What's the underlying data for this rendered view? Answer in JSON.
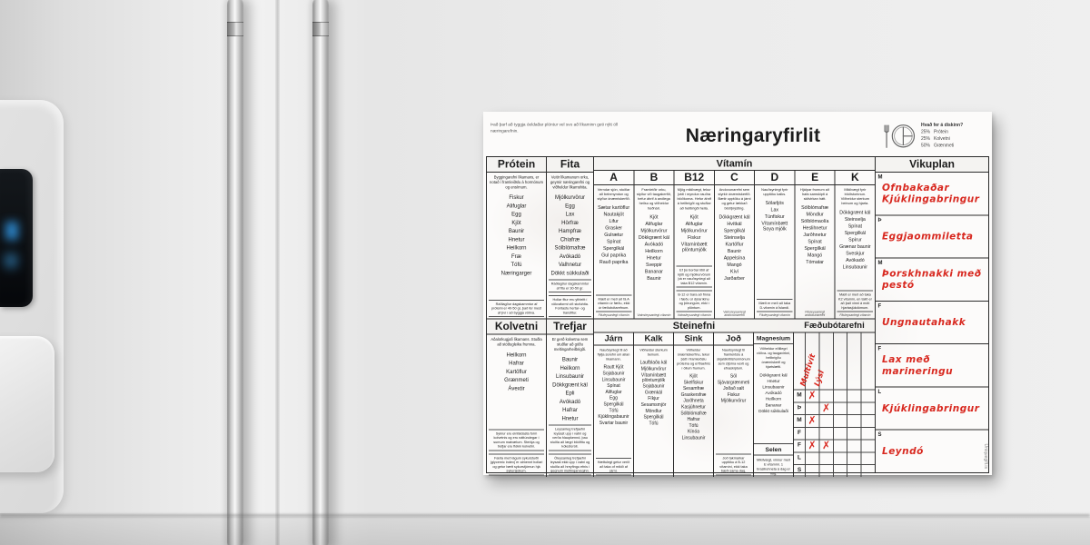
{
  "chart": {
    "top_note": "Það þarf að tyggja óeldaðar plöntur vel svo að líkaminn geti nýtt öll næringarefnin.",
    "title": "Næringaryfirlit",
    "plate": {
      "question": "Hvað fer á diskinn?",
      "portions": [
        {
          "pct": "25%",
          "label": "Prótein"
        },
        {
          "pct": "25%",
          "label": "Kolvetni"
        },
        {
          "pct": "50%",
          "label": "Grænmeti"
        }
      ]
    },
    "protein": {
      "header": "Prótein",
      "desc": "Byggingarefni líkamans, er notað í framleiðslu á hormónum og ensímum.",
      "items": [
        "Fiskur",
        "Alifuglar",
        "Egg",
        "Kjöt",
        "Baunir",
        "Hnetur",
        "Heilkorn",
        "Fræ",
        "Tófú",
        "Næringarger"
      ],
      "foot": "Ráðlagður dagskammtur af próteini er 40-50 gr, það fer mest af því í að byggja vöðva."
    },
    "fita": {
      "header": "Fita",
      "desc": "Veitir líkamanum orku, geymir næringarefni og viðheldur líkamshita.",
      "items": [
        "Mjólkurvörur",
        "Egg",
        "Lax",
        "Hörfræ",
        "Hampfræ",
        "Chiafræ",
        "Sólblómafræ",
        "Avókadó",
        "Valhnetur",
        "Dökkt súkkulaði"
      ],
      "foot": "Ráðlagður dagskammtur af fitu er 30-50 gr.",
      "foot2": "Hollar fitur eru yfirleitt í vökvaformi við stofuhita. Forðastu hertar- og transfitur."
    },
    "vitamin_section": "Vítamín",
    "vitamins": [
      {
        "header": "A",
        "desc": "Verndar sjón, stuðlar að beinmyndun og styður ónæmiskerfið.",
        "items": [
          "Sætar kartöflur",
          "Nautakjöt",
          "Lifur",
          "Grasker",
          "Gulrætur",
          "Spínat",
          "Spergilkál",
          "Gul paprika",
          "Rauð paprika"
        ],
        "note": "Mælt er með að fá A vítamín úr fæðu, ekki úr fæðubótarefnum.",
        "foot": "Fituleysanlegt vítamín"
      },
      {
        "header": "B",
        "desc": "Framleiðir orku, styður við taugakerfið, hefur áhrif á andlega heilsu og viðheldur húðhári.",
        "items": [
          "Kjöt",
          "Alifuglar",
          "Mjólkurvörur",
          "Dökkgrænt kál",
          "Avókadó",
          "Heilkorn",
          "Hnetur",
          "Sveppir",
          "Bananar",
          "Baunir"
        ],
        "foot": "Vatnsleysanlegt vítamín"
      },
      {
        "header": "B12",
        "desc": "Mjög mikilvægt, tekur þátt í myndun rauðra blóðkorna. Hefur áhrif á heilbrigði og stuðlar að heilbrigði heila.",
        "items": [
          "Kjöt",
          "Alifuglar",
          "Mjólkurvörur",
          "Fiskur",
          "Vítamínbætt plöntumjólk"
        ],
        "note": "Ef þú borðar lítið af kjöti og mjólkurvörum þá er nauðsynlegt að taka B12 vítamín.",
        "note2": "B-12 er bara að finna í fæðu úr dýraríkinu og þörungum, ekki í plöntum.",
        "foot": "Vatnsleysanlegt vítamín"
      },
      {
        "header": "C",
        "desc": "Andoxunarefni sem styrkir ónæmiskerfið. Bætir upptöku á járni og getur lækkað blóðþrýsting.",
        "items": [
          "Dökkgrænt kál",
          "Hvítkál",
          "Spergilkál",
          "Steinselja",
          "Kartöflur",
          "Baunir",
          "Appelsína",
          "Mangó",
          "Kíví",
          "Jarðarber"
        ],
        "foot": "Vatnsleysanlegt andoxunarefni"
      },
      {
        "header": "D",
        "desc": "Nauðsynlegt fyrir upptöku kalks.",
        "items": [
          "Sólarljós",
          "Lax",
          "Túnfiskur",
          "Vítamínbætt Soya mjólk"
        ],
        "note": "Mælt er með að taka D-vítamín á Íslandi.",
        "foot": "Fituleysanlegt vítamín"
      },
      {
        "header": "E",
        "desc": "Hjálpar frumum að hafa samskipti á skilvirkan hátt.",
        "items": [
          "Sólblómafræ",
          "Möndlur",
          "Sólblómaolía",
          "Heslihnetur",
          "Jarðhnetur",
          "Spínat",
          "Spergilkál",
          "Mangó",
          "Tómatar"
        ],
        "foot": "Fituleysanlegt andoxunarefni"
      },
      {
        "header": "K",
        "desc": "Mikilvægt fyrir blóðstorknun. Viðheldur sterkum beinum og hjarta.",
        "items": [
          "Dökkgrænt kál",
          "Steinselja",
          "Spínat",
          "Spergilkál",
          "Spírur",
          "Grænar baunir",
          "Sveskjur",
          "Avókadó",
          "Linsubaunir"
        ],
        "note": "Mælt er með að taka K2 vítamín, en talið er að það vinni á móti hjartasjúkdómum.",
        "foot": "Fituleysanlegt vítamín"
      }
    ],
    "kolvetni": {
      "header": "Kolvetni",
      "desc": "Aðalorkugjafi líkamans. Stuðla að stöðugleika frumna.",
      "items": [
        "Heilkorn",
        "Hafrar",
        "Kartöflur",
        "Grænmeti",
        "Ávextir"
      ],
      "foot": "Sykrur eru einfaldasta form kolvetnis og eru náttúrulegar í sumum matvælum. Sterkja og trefjar eru flókin kolvetni.",
      "foot2": "Fæða með lágum sykurstuðli (glycemic index) er almennt hollari og getur bætt sykurstjórnun hjá sykursjúkum."
    },
    "trefjar": {
      "header": "Trefjar",
      "desc": "Er gerð kolvetna sem stuðlar að góðu meltingarheilbrigði.",
      "items": [
        "Baunir",
        "Heilkorn",
        "Linsubaunir",
        "Dökkgrænt kál",
        "Epli",
        "Avókadó",
        "Hafrar",
        "Hnetur"
      ],
      "foot": "Leysanleg trefjaefni leysast upp í vatni og verða hlaupkennd, þau stuðla að lægri blóðfitu og kólesteróli.",
      "foot2": "Óleysanleg trefjaefni leysast ekki upp í vatni og stuðla að hreyfingu efnis í gegnum meltingarveginn."
    },
    "steinefni_section": "Steinefni",
    "steinefni": [
      {
        "header": "Járn",
        "desc": "Nauðsynlegt til að flytja súrefni um allan líkamann.",
        "items": [
          "Rautt Kjöt",
          "Sojabaunir",
          "Linsubaunir",
          "Spínat",
          "Alifuglar",
          "Egg",
          "Spergilkál",
          "Tófú",
          "Kjúklingabaunir",
          "Svartar baunir"
        ],
        "foot": "Hættulegt getur verið að taka of mikið af járni."
      },
      {
        "header": "Kalk",
        "desc": "Viðheldur sterkum beinum.",
        "items": [
          "Laufblaða kál",
          "Mjólkurvörur",
          "Vítamínbætt plöntumjólk",
          "Sojabaunir",
          "Grænkál",
          "Fíkjur",
          "Sesamsmjör",
          "Möndlur",
          "Spergilkál",
          "Tófú"
        ]
      },
      {
        "header": "Sink",
        "desc": "Viðheldur ónæmiskerfinu, tekur þátt í framleiðslu próteina og erfðaefnis í öllum frumum.",
        "items": [
          "Kjöt",
          "Skelfiskur",
          "Sesamfræ",
          "Graskersfræ",
          "Jarðhneta",
          "Kasjúhnetur",
          "Sólblómafræ",
          "Hafrar",
          "Tófú",
          "Kínóa",
          "Linsubaunir"
        ]
      },
      {
        "header": "Joð",
        "desc": "Nauðsynlegt til framleiðslu á skjaldkirtilshormónum sem stjórna vexti og efnaskiptum.",
        "items": [
          "Söl",
          "Sjávargrænmeti",
          "Joðað salt",
          "Fiskur",
          "Mjólkurvörur"
        ],
        "foot": "Joð takmarkar upptöku á B-12 vítamíni, ekki taka bæði sama dag."
      }
    ],
    "magnesium": {
      "header": "Magnesíum",
      "desc": "Viðheldur eðlilegri vöðva- og taugavirkni, heilbrigðu ónæmiskerfi og hjartslætti.",
      "items": [
        "Dökkgrænt kál",
        "Hnetur",
        "Linsubaunir",
        "Avókadó",
        "Heilkorn",
        "Bananar",
        "Dökkt súkkulaði"
      ]
    },
    "selen": {
      "header": "Selen",
      "desc": "Mikilvægt, vinnur með E vítamíni. 1 brasilíuhneta á dag er nóg."
    },
    "supplements": {
      "header": "Fæðubótarefni",
      "columns": [
        "Multivít",
        "Lýsi",
        "",
        "",
        ""
      ],
      "rows": [
        {
          "day": "M",
          "checks": [
            true,
            false,
            false,
            false,
            false
          ]
        },
        {
          "day": "Þ",
          "checks": [
            false,
            true,
            false,
            false,
            false
          ]
        },
        {
          "day": "M",
          "checks": [
            true,
            false,
            false,
            false,
            false
          ]
        },
        {
          "day": "F",
          "checks": [
            false,
            false,
            false,
            false,
            false
          ]
        },
        {
          "day": "F",
          "checks": [
            true,
            true,
            false,
            false,
            false
          ]
        },
        {
          "day": "L",
          "checks": [
            false,
            false,
            false,
            false,
            false
          ]
        },
        {
          "day": "S",
          "checks": [
            false,
            false,
            false,
            false,
            false
          ]
        }
      ]
    },
    "vikuplan": {
      "header": "Vikuplan",
      "rows": [
        {
          "day": "M",
          "meal": "Ofnbakaðar Kjúklingabringur"
        },
        {
          "day": "Þ",
          "meal": "Eggjaommiletta"
        },
        {
          "day": "M",
          "meal": "Þorskhnakki með pestó"
        },
        {
          "day": "F",
          "meal": "Ungnautahakk"
        },
        {
          "day": "F",
          "meal": "Lax með marineringu"
        },
        {
          "day": "L",
          "meal": "Kjúklingabringur"
        },
        {
          "day": "S",
          "meal": "Leyndó"
        }
      ]
    },
    "watermark": "Uniquegift.is",
    "colors": {
      "accent_red": "#d8281f",
      "ink": "#1c1c1c"
    }
  }
}
